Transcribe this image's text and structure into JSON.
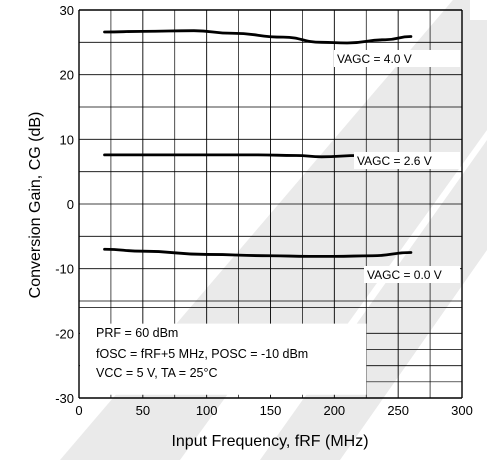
{
  "chart_data": {
    "type": "line",
    "xlabel": "Input Frequency, fRF (MHz)",
    "ylabel": "Conversion Gain, CG (dB)",
    "xlim": [
      0,
      300
    ],
    "ylim": [
      -30,
      30
    ],
    "x_ticks": [
      "0",
      "50",
      "100",
      "150",
      "200",
      "250",
      "300"
    ],
    "y_ticks": [
      "30",
      "20",
      "10",
      "0",
      "-10",
      "-20",
      "-30"
    ],
    "grid": true,
    "series": [
      {
        "name": "VAGC = 4.0 V",
        "x": [
          20,
          50,
          90,
          120,
          160,
          190,
          210,
          240,
          260
        ],
        "y": [
          26.6,
          26.7,
          26.8,
          26.4,
          25.8,
          25.0,
          24.9,
          25.4,
          25.9
        ]
      },
      {
        "name": "VAGC = 2.6 V",
        "x": [
          20,
          60,
          100,
          140,
          170,
          190,
          220,
          260
        ],
        "y": [
          7.6,
          7.6,
          7.6,
          7.6,
          7.5,
          7.3,
          7.5,
          7.8
        ]
      },
      {
        "name": "VAGC = 0.0 V",
        "x": [
          20,
          50,
          100,
          150,
          180,
          200,
          230,
          260
        ],
        "y": [
          -7.0,
          -7.3,
          -7.8,
          -8.0,
          -8.1,
          -8.1,
          -8.0,
          -7.5
        ]
      }
    ],
    "conditions": [
      "PRF = 60 dBm",
      "fOSC = fRF+5 MHz, POSC = -10 dBm",
      "VCC = 5 V, TA = 25°C"
    ]
  },
  "colors": {
    "curve": "#000000",
    "grid": "#000000",
    "watermark": "#e3e3e3"
  }
}
